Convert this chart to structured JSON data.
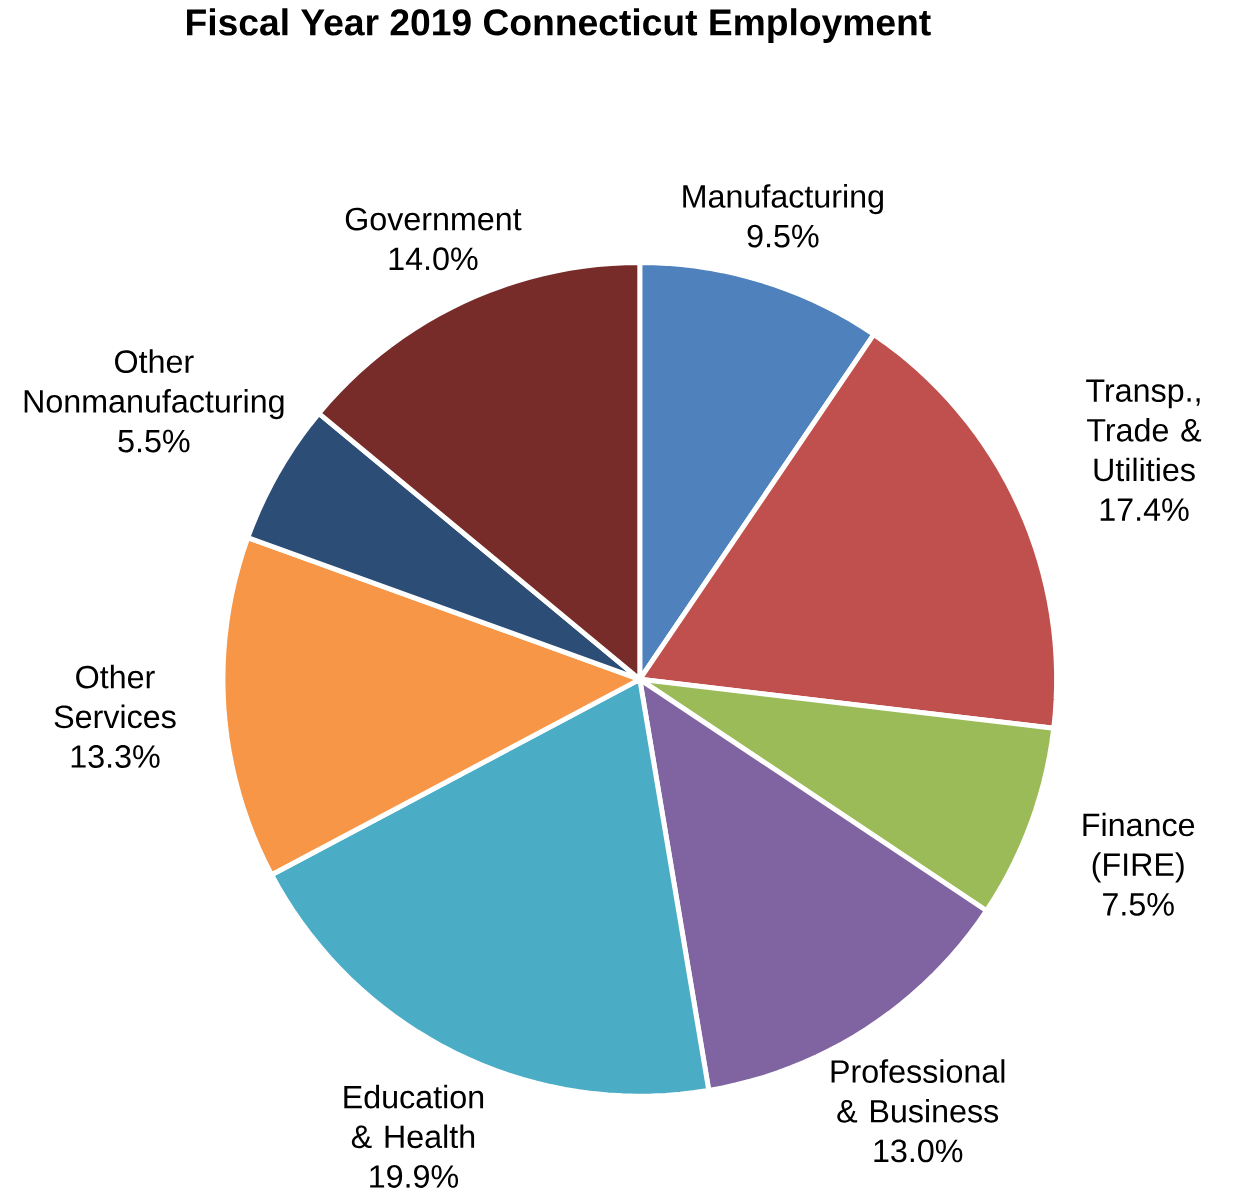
{
  "chart_data": {
    "type": "pie",
    "title": "Fiscal Year 2019 Connecticut Employment",
    "categories": [
      "Manufacturing",
      "Transp., Trade & Utilities",
      "Finance (FIRE)",
      "Professional & Business",
      "Education & Health",
      "Other Services",
      "Other Nonmanufacturing",
      "Government"
    ],
    "values": [
      9.5,
      17.4,
      7.5,
      13.0,
      19.9,
      13.3,
      5.5,
      14.0
    ],
    "value_labels": [
      "9.5%",
      "17.4%",
      "7.5%",
      "13.0%",
      "19.9%",
      "13.3%",
      "5.5%",
      "14.0%"
    ],
    "colors": [
      "#4f81bd",
      "#c0504d",
      "#9bbb59",
      "#8064a2",
      "#4bacc6",
      "#f79646",
      "#2c4d75",
      "#772c2a"
    ]
  }
}
